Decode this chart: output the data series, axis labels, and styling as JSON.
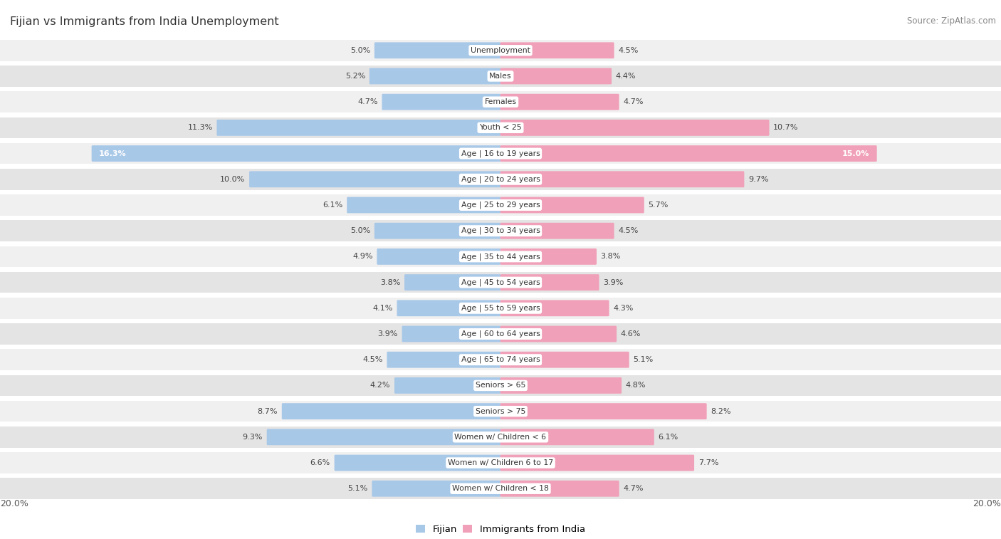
{
  "title": "Fijian vs Immigrants from India Unemployment",
  "source": "Source: ZipAtlas.com",
  "categories": [
    "Unemployment",
    "Males",
    "Females",
    "Youth < 25",
    "Age | 16 to 19 years",
    "Age | 20 to 24 years",
    "Age | 25 to 29 years",
    "Age | 30 to 34 years",
    "Age | 35 to 44 years",
    "Age | 45 to 54 years",
    "Age | 55 to 59 years",
    "Age | 60 to 64 years",
    "Age | 65 to 74 years",
    "Seniors > 65",
    "Seniors > 75",
    "Women w/ Children < 6",
    "Women w/ Children 6 to 17",
    "Women w/ Children < 18"
  ],
  "fijian": [
    5.0,
    5.2,
    4.7,
    11.3,
    16.3,
    10.0,
    6.1,
    5.0,
    4.9,
    3.8,
    4.1,
    3.9,
    4.5,
    4.2,
    8.7,
    9.3,
    6.6,
    5.1
  ],
  "india": [
    4.5,
    4.4,
    4.7,
    10.7,
    15.0,
    9.7,
    5.7,
    4.5,
    3.8,
    3.9,
    4.3,
    4.6,
    5.1,
    4.8,
    8.2,
    6.1,
    7.7,
    4.7
  ],
  "fijian_color": "#a8c8e8",
  "india_color": "#f0a0b8",
  "row_bg_light": "#f0f0f0",
  "row_bg_dark": "#e4e4e4",
  "max_val": 20.0,
  "label_color": "#444444",
  "title_color": "#333333",
  "legend_fijian": "Fijian",
  "legend_india": "Immigrants from India",
  "inside_label_rows": [
    4
  ]
}
